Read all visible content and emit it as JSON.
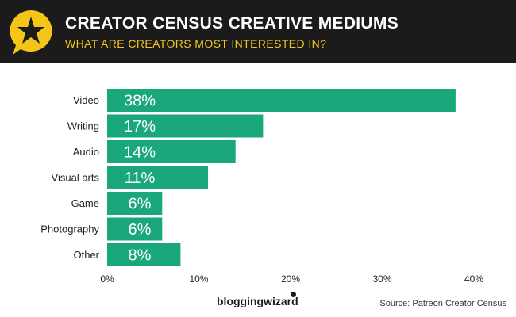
{
  "header": {
    "title": "CREATOR CENSUS CREATIVE MEDIUMS",
    "subtitle": "WHAT ARE CREATORS MOST INTERESTED IN?",
    "logo_icon": "star-speech-bubble-icon"
  },
  "footer": {
    "brand": "bloggingwizard",
    "source": "Source: Patreon Creator Census"
  },
  "colors": {
    "bar": "#1aa77b",
    "header_bg": "#1b1b1b",
    "accent": "#f5c518"
  },
  "chart_data": {
    "type": "bar",
    "orientation": "horizontal",
    "categories": [
      "Video",
      "Writing",
      "Audio",
      "Visual arts",
      "Game",
      "Photography",
      "Other"
    ],
    "values": [
      38,
      17,
      14,
      11,
      6,
      6,
      8
    ],
    "value_labels": [
      "38%",
      "17%",
      "14%",
      "11%",
      "6%",
      "6%",
      "8%"
    ],
    "xlim": [
      0,
      40
    ],
    "xticks": [
      0,
      10,
      20,
      30,
      40
    ],
    "xtick_labels": [
      "0%",
      "10%",
      "20%",
      "30%",
      "40%"
    ],
    "grid": false
  }
}
